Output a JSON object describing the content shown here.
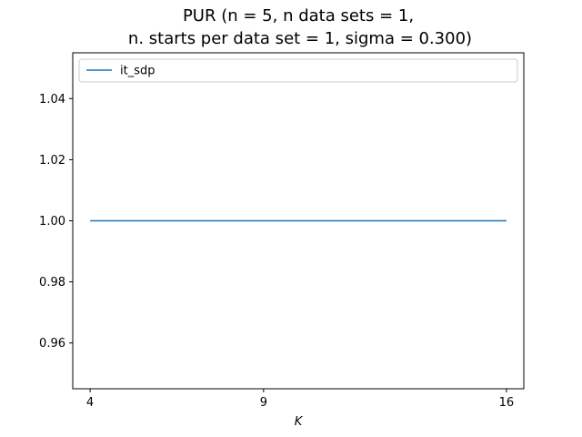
{
  "chart_data": {
    "type": "line",
    "title_line1": "PUR (n = 5, n data sets = 1,",
    "title_line2": "n. starts per data set = 1, sigma = 0.300)",
    "xlabel": "K",
    "ylabel": "",
    "x": [
      4,
      9,
      16
    ],
    "xticks": [
      "4",
      "9",
      "16"
    ],
    "xlim": [
      3.5,
      16.5
    ],
    "ylim": [
      0.945,
      1.055
    ],
    "yticks": [
      0.96,
      0.98,
      1.0,
      1.02,
      1.04
    ],
    "ytick_labels": [
      "0.96",
      "0.98",
      "1.00",
      "1.02",
      "1.04"
    ],
    "series": [
      {
        "name": "it_sdp",
        "color": "#1f77b4",
        "x": [
          4,
          9,
          16
        ],
        "values": [
          1.0,
          1.0,
          1.0
        ]
      }
    ],
    "legend_position": "top",
    "grid": false
  }
}
